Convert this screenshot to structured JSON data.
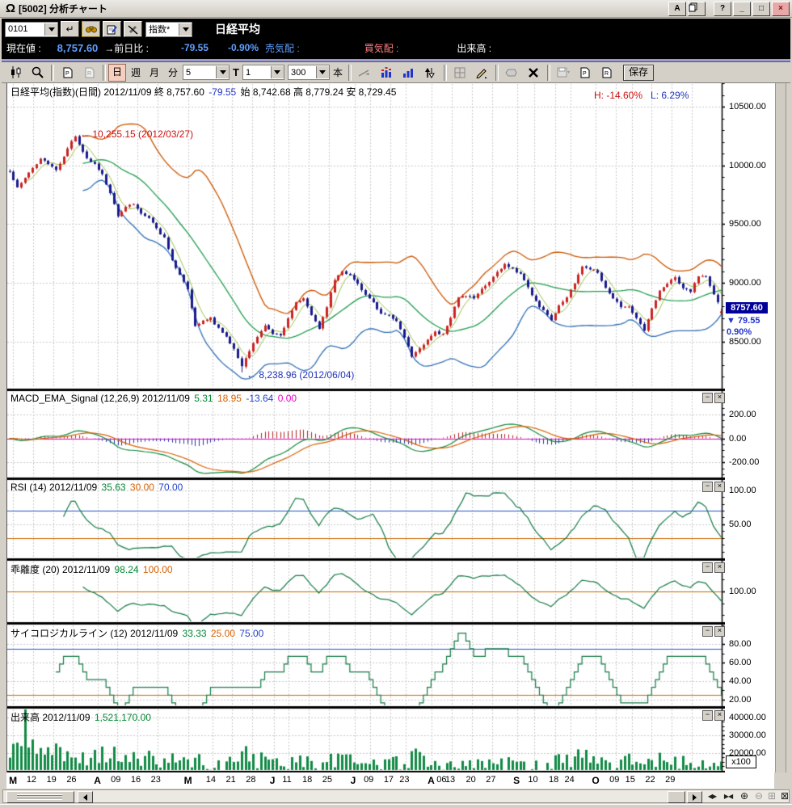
{
  "window": {
    "title": "[5002] 分析チャート",
    "app_icon": "Ω",
    "buttons": {
      "font": "A",
      "help": "?",
      "minimize": "_",
      "maximize": "□",
      "close": "×"
    }
  },
  "quote": {
    "code_value": "0101",
    "category_value": "指数*",
    "name": "日経平均",
    "current_label": "現在値 :",
    "current_value": "8,757.60",
    "diff_label": "→前日比 :",
    "diff_value": "-79.55",
    "diff_pct": "-0.90%",
    "ask_label": "売気配 :",
    "bid_label": "買気配 :",
    "volume_label": "出来高 :"
  },
  "toolbar": {
    "period_buttons": [
      "日",
      "週",
      "月",
      "分"
    ],
    "active_period": "日",
    "interval_value": "5",
    "t_label": "T",
    "multiplier_value": "1",
    "bars_value": "300",
    "bars_unit": "本",
    "save_label": "保存"
  },
  "chart_data": {
    "type": "candlestick",
    "symbol": "日経平均",
    "frequency": "日間",
    "date": "2012/11/09",
    "last": {
      "open": 8742.68,
      "high": 8779.24,
      "low": 8729.45,
      "close": 8757.6,
      "change": -79.55,
      "change_pct": -0.9
    },
    "n_bars": 185,
    "colors": {
      "up": "#cc2222",
      "down": "#1a1a8c",
      "band_upper": "#cc5500",
      "sma20": "#1f9e4e",
      "sma5": "#9bc34a",
      "band_lower": "#2f6fb5",
      "indicator": "#137a45",
      "macd": "#0f8a3a",
      "signal": "#d86000",
      "zero": "#ee00cc",
      "hist_pos": "#b22222",
      "hist_neg": "#2233aa",
      "volume": "#118a44",
      "hline_blue": "#2255cc",
      "hline_orange": "#cc6600",
      "grid": "#c9c9c9",
      "tag_bg": "#000099"
    },
    "x_axis": {
      "labels": [
        {
          "t": "M",
          "f": 0.008,
          "m": 1
        },
        {
          "t": "12",
          "f": 0.036
        },
        {
          "t": "19",
          "f": 0.064
        },
        {
          "t": "26",
          "f": 0.092
        },
        {
          "t": "A",
          "f": 0.127,
          "m": 1
        },
        {
          "t": "09",
          "f": 0.154
        },
        {
          "t": "16",
          "f": 0.182
        },
        {
          "t": "23",
          "f": 0.21
        },
        {
          "t": "M",
          "f": 0.253,
          "m": 1
        },
        {
          "t": "14",
          "f": 0.287
        },
        {
          "t": "21",
          "f": 0.315
        },
        {
          "t": "28",
          "f": 0.343
        },
        {
          "t": "J",
          "f": 0.373,
          "m": 1
        },
        {
          "t": "11",
          "f": 0.394
        },
        {
          "t": "18",
          "f": 0.422
        },
        {
          "t": "25",
          "f": 0.45
        },
        {
          "t": "J",
          "f": 0.486,
          "m": 1
        },
        {
          "t": "09",
          "f": 0.508
        },
        {
          "t": "17",
          "f": 0.536
        },
        {
          "t": "23",
          "f": 0.558
        },
        {
          "t": "A",
          "f": 0.594,
          "m": 1
        },
        {
          "t": "06",
          "f": 0.61
        },
        {
          "t": "13",
          "f": 0.622
        },
        {
          "t": "20",
          "f": 0.651
        },
        {
          "t": "27",
          "f": 0.679
        },
        {
          "t": "S",
          "f": 0.714,
          "m": 1
        },
        {
          "t": "10",
          "f": 0.738
        },
        {
          "t": "18",
          "f": 0.767
        },
        {
          "t": "24",
          "f": 0.789
        },
        {
          "t": "O",
          "f": 0.824,
          "m": 1
        },
        {
          "t": "09",
          "f": 0.852
        },
        {
          "t": "15",
          "f": 0.874
        },
        {
          "t": "22",
          "f": 0.902
        },
        {
          "t": "29",
          "f": 0.93
        }
      ]
    },
    "price": {
      "ylim": [
        8100,
        10700
      ],
      "minor_step": 100,
      "yticks": [
        {
          "v": 10500,
          "t": "10500.00"
        },
        {
          "v": 10000,
          "t": "10000.00"
        },
        {
          "v": 9500,
          "t": "9500.00"
        },
        {
          "v": 9000,
          "t": "9000.00"
        },
        {
          "v": 8500,
          "t": "8500.00"
        }
      ],
      "noise_amp": 9,
      "seed": 11,
      "anchors": [
        [
          0,
          9940
        ],
        [
          2,
          9820
        ],
        [
          4,
          9900
        ],
        [
          6,
          9970
        ],
        [
          8,
          10060
        ],
        [
          10,
          10010
        ],
        [
          12,
          9960
        ],
        [
          14,
          10080
        ],
        [
          16,
          10200
        ],
        [
          17,
          10255
        ],
        [
          18,
          10170
        ],
        [
          20,
          10060
        ],
        [
          22,
          10010
        ],
        [
          24,
          9920
        ],
        [
          26,
          9770
        ],
        [
          28,
          9560
        ],
        [
          30,
          9640
        ],
        [
          32,
          9680
        ],
        [
          34,
          9590
        ],
        [
          36,
          9560
        ],
        [
          38,
          9460
        ],
        [
          40,
          9380
        ],
        [
          42,
          9200
        ],
        [
          44,
          9070
        ],
        [
          46,
          8950
        ],
        [
          48,
          8640
        ],
        [
          50,
          8680
        ],
        [
          52,
          8700
        ],
        [
          54,
          8610
        ],
        [
          56,
          8540
        ],
        [
          58,
          8440
        ],
        [
          60,
          8295
        ],
        [
          62,
          8420
        ],
        [
          64,
          8540
        ],
        [
          66,
          8640
        ],
        [
          68,
          8560
        ],
        [
          70,
          8550
        ],
        [
          72,
          8700
        ],
        [
          74,
          8840
        ],
        [
          76,
          8870
        ],
        [
          78,
          8720
        ],
        [
          80,
          8615
        ],
        [
          82,
          8800
        ],
        [
          84,
          9030
        ],
        [
          86,
          9100
        ],
        [
          88,
          9060
        ],
        [
          90,
          8990
        ],
        [
          92,
          8900
        ],
        [
          94,
          8830
        ],
        [
          96,
          8740
        ],
        [
          98,
          8720
        ],
        [
          100,
          8670
        ],
        [
          102,
          8540
        ],
        [
          104,
          8365
        ],
        [
          106,
          8440
        ],
        [
          108,
          8520
        ],
        [
          110,
          8580
        ],
        [
          112,
          8560
        ],
        [
          114,
          8700
        ],
        [
          116,
          8880
        ],
        [
          118,
          8890
        ],
        [
          120,
          8870
        ],
        [
          122,
          8950
        ],
        [
          124,
          9000
        ],
        [
          126,
          9090
        ],
        [
          128,
          9160
        ],
        [
          130,
          9120
        ],
        [
          132,
          9070
        ],
        [
          134,
          8960
        ],
        [
          136,
          8840
        ],
        [
          138,
          8760
        ],
        [
          140,
          8680
        ],
        [
          142,
          8800
        ],
        [
          144,
          8870
        ],
        [
          146,
          9000
        ],
        [
          148,
          9140
        ],
        [
          150,
          9120
        ],
        [
          152,
          9090
        ],
        [
          154,
          8960
        ],
        [
          156,
          8870
        ],
        [
          158,
          8800
        ],
        [
          160,
          8790
        ],
        [
          162,
          8700
        ],
        [
          164,
          8600
        ],
        [
          166,
          8780
        ],
        [
          168,
          8930
        ],
        [
          170,
          9000
        ],
        [
          172,
          9050
        ],
        [
          174,
          8950
        ],
        [
          176,
          8930
        ],
        [
          178,
          9060
        ],
        [
          180,
          9050
        ],
        [
          182,
          8900
        ],
        [
          184,
          8757.6
        ]
      ],
      "peak": {
        "i": 17,
        "value": 10255.15,
        "label": "← 10,255.15 (2012/03/27)"
      },
      "trough": {
        "i": 60,
        "value": 8238.96,
        "label": "← 8,238.96 (2012/06/04)"
      },
      "h_label": "H: -14.60%",
      "l_label": "L: 6.29%",
      "last_tag": {
        "price": "8757.60",
        "diff": "▼ 79.55",
        "pct": "0.90%"
      }
    },
    "panels": {
      "macd": {
        "params": [
          12,
          26,
          9
        ],
        "ylim": [
          -325,
          305
        ],
        "minor_step": 50,
        "yticks": [
          {
            "v": 200,
            "t": "200.00"
          },
          {
            "v": 0,
            "t": "0.00"
          },
          {
            "v": -200,
            "t": "-200.00"
          }
        ]
      },
      "rsi": {
        "period": 14,
        "ylim": [
          0,
          115
        ],
        "minor_step": 10,
        "yticks": [
          {
            "v": 100,
            "t": "100.00"
          },
          {
            "v": 50,
            "t": "50.00"
          }
        ],
        "hlines": [
          {
            "v": 70,
            "c": "#2255cc"
          },
          {
            "v": 30,
            "c": "#cc6600"
          }
        ]
      },
      "dev": {
        "period": 20,
        "ylim": [
          93.5,
          106.5
        ],
        "minor_step": 2.5,
        "yticks": [
          {
            "v": 100,
            "t": "100.00"
          }
        ],
        "hlines": [
          {
            "v": 100,
            "c": "#cc6600"
          }
        ]
      },
      "psych": {
        "period": 12,
        "ylim": [
          13,
          101
        ],
        "minor_step": 10,
        "yticks": [
          {
            "v": 80,
            "t": "80.00"
          },
          {
            "v": 60,
            "t": "60.00"
          },
          {
            "v": 40,
            "t": "40.00"
          },
          {
            "v": 20,
            "t": "20.00"
          }
        ],
        "hlines": [
          {
            "v": 75,
            "c": "#2255cc"
          },
          {
            "v": 25,
            "c": "#cc6600"
          }
        ]
      },
      "volume": {
        "unit": "x100",
        "ylim": [
          10000,
          44500
        ],
        "minor_step": 2500,
        "yticks": [
          {
            "v": 40000,
            "t": "40000.00"
          },
          {
            "v": 30000,
            "t": "30000.00"
          },
          {
            "v": 20000,
            "t": "20000.00"
          }
        ],
        "noise": 0.3,
        "seed": 5,
        "anchors": [
          [
            0,
            20000
          ],
          [
            3,
            30000
          ],
          [
            4,
            38500
          ],
          [
            6,
            24000
          ],
          [
            10,
            22000
          ],
          [
            16,
            19000
          ],
          [
            20,
            18000
          ],
          [
            28,
            20000
          ],
          [
            30,
            17000
          ],
          [
            40,
            16000
          ],
          [
            50,
            15000
          ],
          [
            56,
            14000
          ],
          [
            60,
            22000
          ],
          [
            64,
            16000
          ],
          [
            70,
            14000
          ],
          [
            76,
            15000
          ],
          [
            80,
            13500
          ],
          [
            85,
            16500
          ],
          [
            90,
            14000
          ],
          [
            95,
            13000
          ],
          [
            100,
            14000
          ],
          [
            105,
            17500
          ],
          [
            110,
            14000
          ],
          [
            115,
            13000
          ],
          [
            120,
            12500
          ],
          [
            125,
            14000
          ],
          [
            130,
            13500
          ],
          [
            135,
            12000
          ],
          [
            140,
            14000
          ],
          [
            144,
            16000
          ],
          [
            148,
            18000
          ],
          [
            152,
            14000
          ],
          [
            156,
            13000
          ],
          [
            160,
            16500
          ],
          [
            164,
            14500
          ],
          [
            168,
            15500
          ],
          [
            172,
            16000
          ],
          [
            176,
            13500
          ],
          [
            180,
            14500
          ],
          [
            184,
            15211.7
          ]
        ]
      }
    },
    "headers": {
      "main": [
        {
          "text": "日経平均(指数)(日間) 2012/11/09  終 8,757.60 ",
          "color": "#000000"
        },
        {
          "text": "-79.55",
          "color": "#2233cc"
        },
        {
          "text": " 始 8,742.68 高 8,779.24 安 8,729.45",
          "color": "#000000"
        }
      ],
      "macd": [
        {
          "text": "MACD_EMA_Signal (12,26,9) 2012/11/09 ",
          "color": "#000000"
        },
        {
          "text": "5.31 ",
          "color": "#008833"
        },
        {
          "text": "18.95 ",
          "color": "#d86000"
        },
        {
          "text": "-13.64 ",
          "color": "#2244cc"
        },
        {
          "text": "0.00",
          "color": "#ee00cc"
        }
      ],
      "rsi": [
        {
          "text": "RSI (14) 2012/11/09 ",
          "color": "#000000"
        },
        {
          "text": "35.63 ",
          "color": "#008833"
        },
        {
          "text": "30.00 ",
          "color": "#d86000"
        },
        {
          "text": "70.00",
          "color": "#2244cc"
        }
      ],
      "dev": [
        {
          "text": "乖離度 (20) 2012/11/09 ",
          "color": "#000000"
        },
        {
          "text": "98.24 ",
          "color": "#008833"
        },
        {
          "text": "100.00",
          "color": "#d86000"
        }
      ],
      "psych": [
        {
          "text": "サイコロジカルライン (12) 2012/11/09 ",
          "color": "#000000"
        },
        {
          "text": "33.33 ",
          "color": "#008833"
        },
        {
          "text": "25.00 ",
          "color": "#d86000"
        },
        {
          "text": "75.00",
          "color": "#2244cc"
        }
      ],
      "vol": [
        {
          "text": "出来高 2012/11/09 ",
          "color": "#000000"
        },
        {
          "text": "1,521,170.00",
          "color": "#008833"
        }
      ]
    }
  }
}
